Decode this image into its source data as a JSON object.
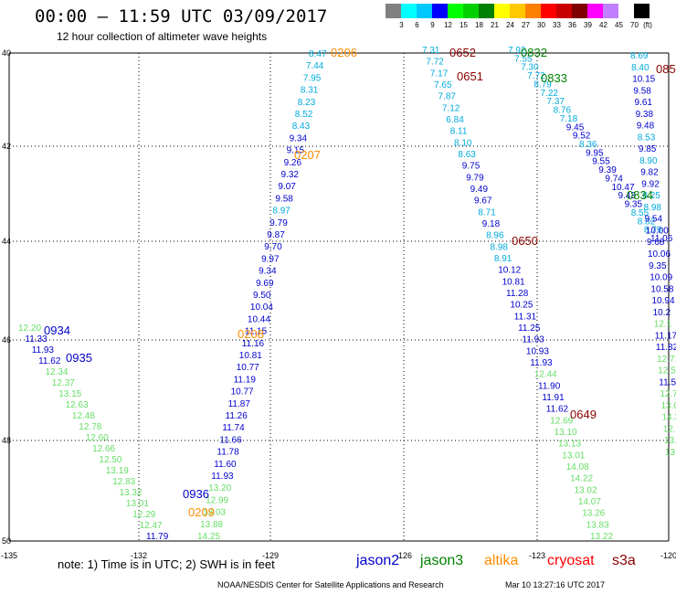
{
  "header": {
    "title": "00:00 – 11:59 UTC 03/09/2017",
    "subtitle": "12 hour collection of altimeter wave heights"
  },
  "legend": {
    "unit": "(ft)",
    "items": [
      {
        "label": "3",
        "color": "#808080"
      },
      {
        "label": "6",
        "color": "#00ffff"
      },
      {
        "label": "9",
        "color": "#00c8ff"
      },
      {
        "label": "12",
        "color": "#0000ff"
      },
      {
        "label": "15",
        "color": "#00ff00"
      },
      {
        "label": "18",
        "color": "#00d000"
      },
      {
        "label": "21",
        "color": "#008000"
      },
      {
        "label": "24",
        "color": "#ffff00"
      },
      {
        "label": "27",
        "color": "#ffc800"
      },
      {
        "label": "30",
        "color": "#ff8000"
      },
      {
        "label": "33",
        "color": "#ff0000"
      },
      {
        "label": "36",
        "color": "#c80000"
      },
      {
        "label": "39",
        "color": "#800000"
      },
      {
        "label": "42",
        "color": "#ff00ff"
      },
      {
        "label": "45",
        "color": "#c080ff"
      },
      {
        "label": "70",
        "color": "#ffffff"
      },
      {
        "label": "",
        "color": "#000000"
      }
    ]
  },
  "map": {
    "lon_ticks": [
      "-135",
      "-132",
      "-129",
      "-126",
      "-123",
      "-120"
    ],
    "lat_ticks": [
      "40",
      "42",
      "44",
      "46",
      "48",
      "50"
    ],
    "time_labels": [
      {
        "text": "0206",
        "color": "#ff8c00"
      },
      {
        "text": "0207",
        "color": "#ff8c00"
      },
      {
        "text": "0208",
        "color": "#ff8c00"
      },
      {
        "text": "0209",
        "color": "#ff8c00"
      },
      {
        "text": "0652",
        "color": "#8b0000"
      },
      {
        "text": "0651",
        "color": "#8b0000"
      },
      {
        "text": "0650",
        "color": "#8b0000"
      },
      {
        "text": "0649",
        "color": "#8b0000"
      },
      {
        "text": "085",
        "color": "#8b0000"
      },
      {
        "text": "0832",
        "color": "#008000"
      },
      {
        "text": "0833",
        "color": "#008000"
      },
      {
        "text": "0834",
        "color": "#008000"
      },
      {
        "text": "0934",
        "color": "#0000cd"
      },
      {
        "text": "0935",
        "color": "#0000cd"
      },
      {
        "text": "0936",
        "color": "#0000cd"
      }
    ],
    "tracks": [
      {
        "name": "altika",
        "values": [
          {
            "v": "8.47",
            "c": "#00aadd"
          },
          {
            "v": "7.44",
            "c": "#00aadd"
          },
          {
            "v": "7.95",
            "c": "#00aadd"
          },
          {
            "v": "8.31",
            "c": "#00aadd"
          },
          {
            "v": "8.23",
            "c": "#00aadd"
          },
          {
            "v": "8.52",
            "c": "#00aadd"
          },
          {
            "v": "8.43",
            "c": "#00aadd"
          },
          {
            "v": "9.34",
            "c": "#0000cd"
          },
          {
            "v": "9.15",
            "c": "#0000cd"
          },
          {
            "v": "9.26",
            "c": "#0000cd"
          },
          {
            "v": "9.32",
            "c": "#0000cd"
          },
          {
            "v": "9.07",
            "c": "#0000cd"
          },
          {
            "v": "9.58",
            "c": "#0000cd"
          },
          {
            "v": "8.97",
            "c": "#00aadd"
          },
          {
            "v": "9.79",
            "c": "#0000cd"
          },
          {
            "v": "9.87",
            "c": "#0000cd"
          },
          {
            "v": "9.70",
            "c": "#0000cd"
          },
          {
            "v": "9.97",
            "c": "#0000cd"
          },
          {
            "v": "9.34",
            "c": "#0000cd"
          },
          {
            "v": "9.69",
            "c": "#0000cd"
          },
          {
            "v": "9.50",
            "c": "#0000cd"
          },
          {
            "v": "10.04",
            "c": "#0000cd"
          },
          {
            "v": "10.44",
            "c": "#0000cd"
          },
          {
            "v": "11.15",
            "c": "#0000cd"
          },
          {
            "v": "11.16",
            "c": "#0000cd"
          },
          {
            "v": "10.81",
            "c": "#0000cd"
          },
          {
            "v": "10.77",
            "c": "#0000cd"
          },
          {
            "v": "11.19",
            "c": "#0000cd"
          },
          {
            "v": "10.77",
            "c": "#0000cd"
          },
          {
            "v": "11.87",
            "c": "#0000cd"
          },
          {
            "v": "11.26",
            "c": "#0000cd"
          },
          {
            "v": "11.74",
            "c": "#0000cd"
          },
          {
            "v": "11.66",
            "c": "#0000cd"
          },
          {
            "v": "11.78",
            "c": "#0000cd"
          },
          {
            "v": "11.60",
            "c": "#0000cd"
          },
          {
            "v": "11.93",
            "c": "#0000cd"
          },
          {
            "v": "13.20",
            "c": "#66dd66"
          },
          {
            "v": "12.99",
            "c": "#66dd66"
          },
          {
            "v": "13.03",
            "c": "#66dd66"
          },
          {
            "v": "13.88",
            "c": "#66dd66"
          },
          {
            "v": "14.25",
            "c": "#66dd66"
          }
        ]
      },
      {
        "name": "jason2",
        "values": [
          {
            "v": "12.20",
            "c": "#66dd66"
          },
          {
            "v": "11.33",
            "c": "#0000cd"
          },
          {
            "v": "11.93",
            "c": "#0000cd"
          },
          {
            "v": "11.62",
            "c": "#0000cd"
          },
          {
            "v": "12.34",
            "c": "#66dd66"
          },
          {
            "v": "12.37",
            "c": "#66dd66"
          },
          {
            "v": "13.15",
            "c": "#66dd66"
          },
          {
            "v": "12.63",
            "c": "#66dd66"
          },
          {
            "v": "12.48",
            "c": "#66dd66"
          },
          {
            "v": "12.78",
            "c": "#66dd66"
          },
          {
            "v": "12.60",
            "c": "#66dd66"
          },
          {
            "v": "12.66",
            "c": "#66dd66"
          },
          {
            "v": "12.50",
            "c": "#66dd66"
          },
          {
            "v": "13.19",
            "c": "#66dd66"
          },
          {
            "v": "12.83",
            "c": "#66dd66"
          },
          {
            "v": "13.32",
            "c": "#66dd66"
          },
          {
            "v": "13.01",
            "c": "#66dd66"
          },
          {
            "v": "12.29",
            "c": "#66dd66"
          },
          {
            "v": "12.47",
            "c": "#66dd66"
          },
          {
            "v": "11.79",
            "c": "#0000cd"
          }
        ]
      },
      {
        "name": "cryosat",
        "values": [
          {
            "v": "7.31",
            "c": "#00aadd"
          },
          {
            "v": "7.72",
            "c": "#00aadd"
          },
          {
            "v": "7.17",
            "c": "#00aadd"
          },
          {
            "v": "7.65",
            "c": "#00aadd"
          },
          {
            "v": "7.87",
            "c": "#00aadd"
          },
          {
            "v": "7.12",
            "c": "#00aadd"
          },
          {
            "v": "6.84",
            "c": "#00aadd"
          },
          {
            "v": "8.11",
            "c": "#00aadd"
          },
          {
            "v": "8.10",
            "c": "#00aadd"
          },
          {
            "v": "8.63",
            "c": "#00aadd"
          },
          {
            "v": "9.75",
            "c": "#0000cd"
          },
          {
            "v": "9.79",
            "c": "#0000cd"
          },
          {
            "v": "9.49",
            "c": "#0000cd"
          },
          {
            "v": "9.67",
            "c": "#0000cd"
          },
          {
            "v": "8.71",
            "c": "#00aadd"
          },
          {
            "v": "9.18",
            "c": "#0000cd"
          },
          {
            "v": "8.96",
            "c": "#00aadd"
          },
          {
            "v": "8.98",
            "c": "#00aadd"
          },
          {
            "v": "8.91",
            "c": "#00aadd"
          },
          {
            "v": "10.12",
            "c": "#0000cd"
          },
          {
            "v": "10.81",
            "c": "#0000cd"
          },
          {
            "v": "11.28",
            "c": "#0000cd"
          },
          {
            "v": "10.25",
            "c": "#0000cd"
          },
          {
            "v": "11.31",
            "c": "#0000cd"
          },
          {
            "v": "11.25",
            "c": "#0000cd"
          },
          {
            "v": "11.93",
            "c": "#0000cd"
          },
          {
            "v": "10.93",
            "c": "#0000cd"
          },
          {
            "v": "11.93",
            "c": "#0000cd"
          },
          {
            "v": "12.44",
            "c": "#66dd66"
          },
          {
            "v": "11.90",
            "c": "#0000cd"
          },
          {
            "v": "11.91",
            "c": "#0000cd"
          },
          {
            "v": "11.62",
            "c": "#0000cd"
          },
          {
            "v": "12.69",
            "c": "#66dd66"
          },
          {
            "v": "13.10",
            "c": "#66dd66"
          },
          {
            "v": "13.13",
            "c": "#66dd66"
          },
          {
            "v": "13.01",
            "c": "#66dd66"
          },
          {
            "v": "14.08",
            "c": "#66dd66"
          },
          {
            "v": "14.22",
            "c": "#66dd66"
          },
          {
            "v": "13.02",
            "c": "#66dd66"
          },
          {
            "v": "14.07",
            "c": "#66dd66"
          },
          {
            "v": "13.26",
            "c": "#66dd66"
          },
          {
            "v": "13.83",
            "c": "#66dd66"
          },
          {
            "v": "13.22",
            "c": "#66dd66"
          }
        ]
      },
      {
        "name": "jason3",
        "values": [
          {
            "v": "7.92",
            "c": "#00aadd"
          },
          {
            "v": "7.55",
            "c": "#00aadd"
          },
          {
            "v": "7.30",
            "c": "#00aadd"
          },
          {
            "v": "7.72",
            "c": "#00aadd"
          },
          {
            "v": "8.79",
            "c": "#00aadd"
          },
          {
            "v": "7.22",
            "c": "#00aadd"
          },
          {
            "v": "7.37",
            "c": "#00aadd"
          },
          {
            "v": "8.76",
            "c": "#00aadd"
          },
          {
            "v": "7.18",
            "c": "#00aadd"
          },
          {
            "v": "9.45",
            "c": "#0000cd"
          },
          {
            "v": "9.52",
            "c": "#0000cd"
          },
          {
            "v": "8.36",
            "c": "#00aadd"
          },
          {
            "v": "9.95",
            "c": "#0000cd"
          },
          {
            "v": "9.55",
            "c": "#0000cd"
          },
          {
            "v": "9.39",
            "c": "#0000cd"
          },
          {
            "v": "9.74",
            "c": "#0000cd"
          },
          {
            "v": "10.47",
            "c": "#0000cd"
          },
          {
            "v": "9.43",
            "c": "#0000cd"
          },
          {
            "v": "9.35",
            "c": "#0000cd"
          },
          {
            "v": "8.55",
            "c": "#00aadd"
          },
          {
            "v": "8.82",
            "c": "#00aadd"
          },
          {
            "v": "8.79",
            "c": "#00aadd"
          },
          {
            "v": "11.06",
            "c": "#0000cd"
          }
        ]
      },
      {
        "name": "s3a",
        "values": [
          {
            "v": "8.69",
            "c": "#00aadd"
          },
          {
            "v": "8.40",
            "c": "#00aadd"
          },
          {
            "v": "10.15",
            "c": "#0000cd"
          },
          {
            "v": "9.58",
            "c": "#0000cd"
          },
          {
            "v": "9.61",
            "c": "#0000cd"
          },
          {
            "v": "9.38",
            "c": "#0000cd"
          },
          {
            "v": "9.48",
            "c": "#0000cd"
          },
          {
            "v": "8.53",
            "c": "#00aadd"
          },
          {
            "v": "9.85",
            "c": "#0000cd"
          },
          {
            "v": "8.90",
            "c": "#00aadd"
          },
          {
            "v": "9.82",
            "c": "#0000cd"
          },
          {
            "v": "9.92",
            "c": "#0000cd"
          },
          {
            "v": "8.25",
            "c": "#00aadd"
          },
          {
            "v": "8.98",
            "c": "#00aadd"
          },
          {
            "v": "9.54",
            "c": "#0000cd"
          },
          {
            "v": "10.00",
            "c": "#0000cd"
          },
          {
            "v": "9.68",
            "c": "#0000cd"
          },
          {
            "v": "10.06",
            "c": "#0000cd"
          },
          {
            "v": "9.35",
            "c": "#0000cd"
          },
          {
            "v": "10.09",
            "c": "#0000cd"
          },
          {
            "v": "10.58",
            "c": "#0000cd"
          },
          {
            "v": "10.94",
            "c": "#0000cd"
          },
          {
            "v": "10.2",
            "c": "#0000cd"
          },
          {
            "v": "12.1",
            "c": "#66dd66"
          },
          {
            "v": "11.17",
            "c": "#0000cd"
          },
          {
            "v": "11.82",
            "c": "#0000cd"
          },
          {
            "v": "12.71",
            "c": "#66dd66"
          },
          {
            "v": "12.55",
            "c": "#66dd66"
          },
          {
            "v": "11.55",
            "c": "#0000cd"
          },
          {
            "v": "12.7",
            "c": "#66dd66"
          },
          {
            "v": "13.0",
            "c": "#66dd66"
          },
          {
            "v": "14.3",
            "c": "#66dd66"
          },
          {
            "v": "12.7",
            "c": "#66dd66"
          },
          {
            "v": "13.0",
            "c": "#66dd66"
          },
          {
            "v": "13.0",
            "c": "#66dd66"
          }
        ]
      }
    ]
  },
  "footer": {
    "note": "note: 1) Time is in UTC; 2) SWH is in feet",
    "satellites": [
      {
        "name": "jason2",
        "color": "#0000cd"
      },
      {
        "name": "jason3",
        "color": "#008000"
      },
      {
        "name": "altika",
        "color": "#ff8c00"
      },
      {
        "name": "cryosat",
        "color": "#ff0000"
      },
      {
        "name": "s3a",
        "color": "#8b0000"
      }
    ],
    "credit": "NOAA/NESDIS Center for Satellite Applications and Research",
    "timestamp": "Mar 10 13:27:16 UTC 2017"
  }
}
